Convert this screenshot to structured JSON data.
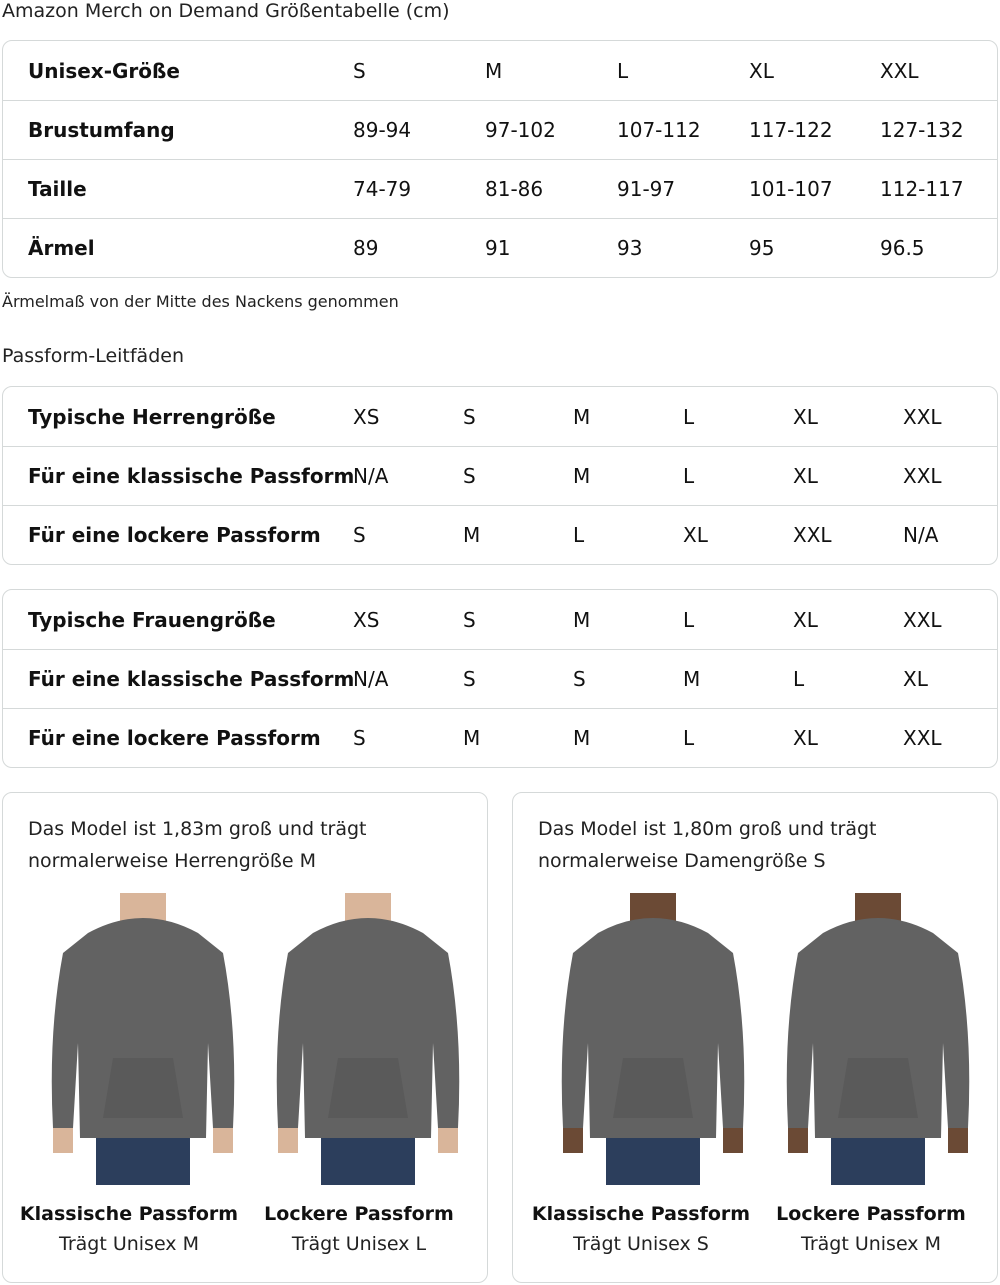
{
  "size_chart": {
    "title": "Amazon Merch on Demand Größentabelle (cm)",
    "rows": [
      {
        "label": "Unisex-Größe",
        "values": [
          "S",
          "M",
          "L",
          "XL",
          "XXL"
        ]
      },
      {
        "label": "Brustumfang",
        "values": [
          "89-94",
          "97-102",
          "107-112",
          "117-122",
          "127-132"
        ]
      },
      {
        "label": "Taille",
        "values": [
          "74-79",
          "81-86",
          "91-97",
          "101-107",
          "112-117"
        ]
      },
      {
        "label": "Ärmel",
        "values": [
          "89",
          "91",
          "93",
          "95",
          "96.5"
        ]
      }
    ],
    "note": "Ärmelmaß von der Mitte des Nackens genommen"
  },
  "fit_guides": {
    "title": "Passform-Leitfäden",
    "men": [
      {
        "label": "Typische Herrengröße",
        "values": [
          "XS",
          "S",
          "M",
          "L",
          "XL",
          "XXL"
        ]
      },
      {
        "label": "Für eine klassische Passform",
        "values": [
          "N/A",
          "S",
          "M",
          "L",
          "XL",
          "XXL"
        ]
      },
      {
        "label": "Für eine lockere Passform",
        "values": [
          "S",
          "M",
          "L",
          "XL",
          "XXL",
          "N/A"
        ]
      }
    ],
    "women": [
      {
        "label": "Typische Frauengröße",
        "values": [
          "XS",
          "S",
          "M",
          "L",
          "XL",
          "XXL"
        ]
      },
      {
        "label": "Für eine klassische Passform",
        "values": [
          "N/A",
          "S",
          "S",
          "M",
          "L",
          "XL"
        ]
      },
      {
        "label": "Für eine lockere Passform",
        "values": [
          "S",
          "M",
          "M",
          "L",
          "XL",
          "XXL"
        ]
      }
    ]
  },
  "models": [
    {
      "line1": "Das Model ist 1,83m groß und trägt",
      "line2": "normalerweise Herrengröße M",
      "photos": [
        {
          "title": "Klassische Passform",
          "sub": "Trägt Unisex M"
        },
        {
          "title": "Lockere Passform",
          "sub": "Trägt Unisex L"
        }
      ]
    },
    {
      "line1": "Das Model ist 1,80m groß und trägt",
      "line2": "normalerweise Damengröße S",
      "photos": [
        {
          "title": "Klassische Passform",
          "sub": "Trägt Unisex S"
        },
        {
          "title": "Lockere Passform",
          "sub": "Trägt Unisex M"
        }
      ]
    }
  ],
  "colors": {
    "border": "#d5d9d9",
    "hoodie": "#626262",
    "jeans": "#2c3e5c"
  }
}
